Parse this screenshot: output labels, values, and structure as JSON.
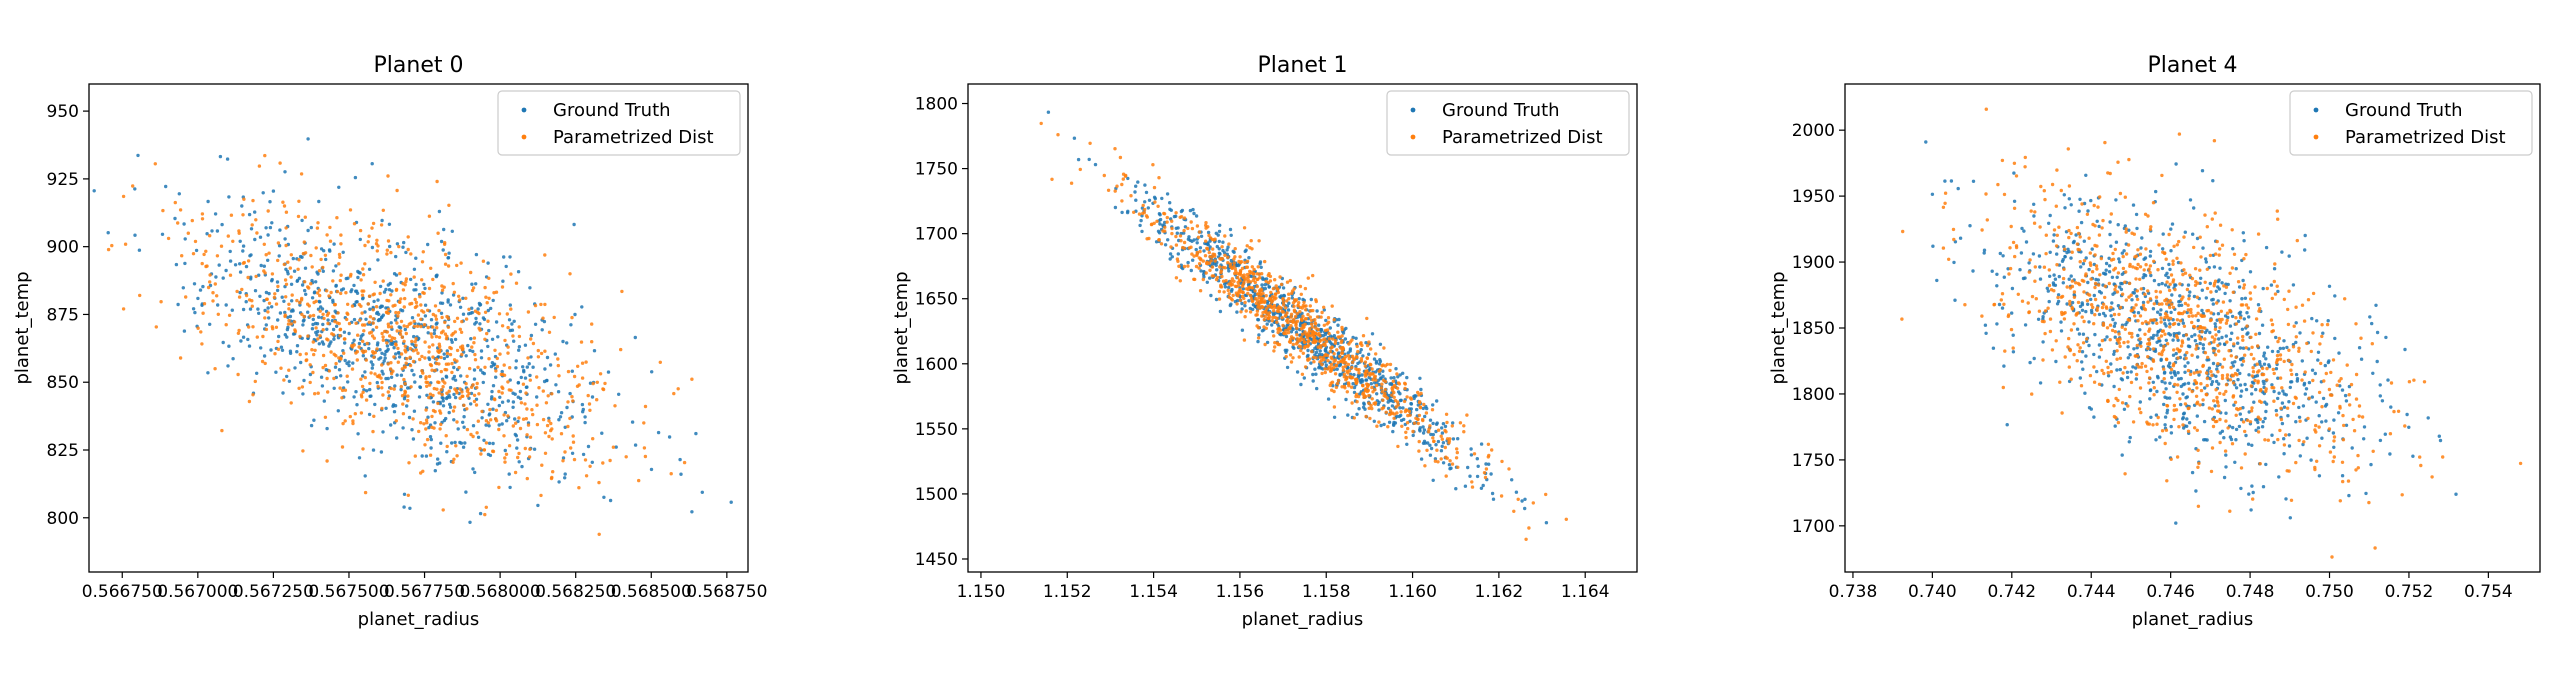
{
  "chart_data": [
    {
      "type": "scatter",
      "title": "Planet 0",
      "xlabel": "planet_radius",
      "ylabel": "planet_temp",
      "xlim": [
        0.56664,
        0.56882
      ],
      "ylim": [
        780,
        960
      ],
      "xticks": [
        0.56675,
        0.567,
        0.56725,
        0.5675,
        0.56775,
        0.568,
        0.56825,
        0.5685,
        0.56875
      ],
      "xtick_labels": [
        "0.566750",
        "0.567000",
        "0.567250",
        "0.567500",
        "0.567750",
        "0.568000",
        "0.568250",
        "0.568500",
        "0.568750"
      ],
      "yticks": [
        800,
        825,
        850,
        875,
        900,
        925,
        950
      ],
      "ytick_labels": [
        "800",
        "825",
        "850",
        "875",
        "900",
        "925",
        "950"
      ],
      "legend_position": "top-right",
      "legend": [
        "Ground Truth",
        "Parametrized Dist"
      ],
      "series": [
        {
          "name": "Ground Truth",
          "color": "#1f77b4",
          "center": [
            0.56765,
            866
          ],
          "sd_x": 0.00033,
          "sd_y": 23,
          "corr": -0.55,
          "count": 900
        },
        {
          "name": "Parametrized Dist",
          "color": "#ff7f0e",
          "center": [
            0.56765,
            866
          ],
          "sd_x": 0.00034,
          "sd_y": 24,
          "corr": -0.55,
          "count": 900
        }
      ]
    },
    {
      "type": "scatter",
      "title": "Planet 1",
      "xlabel": "planet_radius",
      "ylabel": "planet_temp",
      "xlim": [
        1.1497,
        1.1652
      ],
      "ylim": [
        1440,
        1815
      ],
      "xticks": [
        1.15,
        1.152,
        1.154,
        1.156,
        1.158,
        1.16,
        1.162,
        1.164
      ],
      "xtick_labels": [
        "1.150",
        "1.152",
        "1.154",
        "1.156",
        "1.158",
        "1.160",
        "1.162",
        "1.164"
      ],
      "yticks": [
        1450,
        1500,
        1550,
        1600,
        1650,
        1700,
        1750,
        1800
      ],
      "ytick_labels": [
        "1450",
        "1500",
        "1550",
        "1600",
        "1650",
        "1700",
        "1750",
        "1800"
      ],
      "legend_position": "top-right",
      "legend": [
        "Ground Truth",
        "Parametrized Dist"
      ],
      "series": [
        {
          "name": "Ground Truth",
          "color": "#1f77b4",
          "center": [
            1.1575,
            1625.0
          ],
          "sd_x": 0.0019,
          "sd_y": 50,
          "corr": -0.96,
          "count": 900
        },
        {
          "name": "Parametrized Dist",
          "color": "#ff7f0e",
          "center": [
            1.1575,
            1625.0
          ],
          "sd_x": 0.0019,
          "sd_y": 50,
          "corr": -0.96,
          "count": 900
        }
      ]
    },
    {
      "type": "scatter",
      "title": "Planet 4",
      "xlabel": "planet_radius",
      "ylabel": "planet_temp",
      "xlim": [
        0.7378,
        0.7553
      ],
      "ylim": [
        1665,
        2035
      ],
      "xticks": [
        0.738,
        0.74,
        0.742,
        0.744,
        0.746,
        0.748,
        0.75,
        0.752,
        0.754
      ],
      "xtick_labels": [
        "0.738",
        "0.740",
        "0.742",
        "0.744",
        "0.746",
        "0.748",
        "0.750",
        "0.752",
        "0.754"
      ],
      "yticks": [
        1700,
        1750,
        1800,
        1850,
        1900,
        1950,
        2000
      ],
      "ytick_labels": [
        "1700",
        "1750",
        "1800",
        "1850",
        "1900",
        "1950",
        "2000"
      ],
      "legend_position": "top-right",
      "legend": [
        "Ground Truth",
        "Parametrized Dist"
      ],
      "series": [
        {
          "name": "Ground Truth",
          "color": "#1f77b4",
          "center": [
            0.7462,
            1845
          ],
          "sd_x": 0.0023,
          "sd_y": 50,
          "corr": -0.55,
          "count": 900
        },
        {
          "name": "Parametrized Dist",
          "color": "#ff7f0e",
          "center": [
            0.7462,
            1845
          ],
          "sd_x": 0.0024,
          "sd_y": 52,
          "corr": -0.55,
          "count": 900
        }
      ]
    }
  ]
}
